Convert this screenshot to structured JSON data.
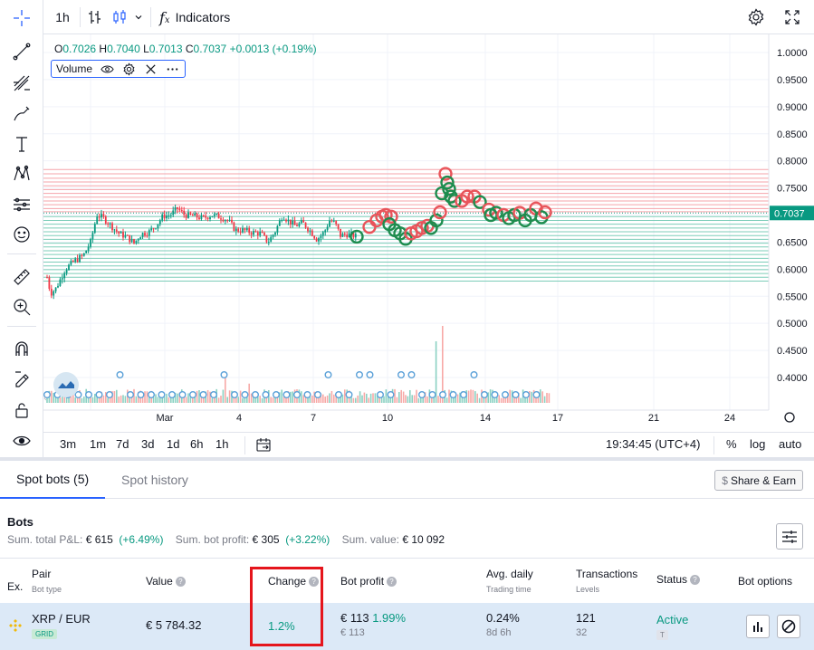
{
  "toolbar": {
    "interval": "1h",
    "indicators_label": "Indicators"
  },
  "legend": {
    "open_key": "O",
    "open": "0.7026",
    "high_key": "H",
    "high": "0.7040",
    "low_key": "L",
    "low": "0.7013",
    "close_key": "C",
    "close": "0.7037",
    "change": "+0.0013 (+0.19%)",
    "volume_label": "Volume"
  },
  "colors": {
    "up": "#089981",
    "down": "#f23645",
    "accent": "#2962ff",
    "price_tag": "#089981",
    "sell_grid_line": "#f5a3a9",
    "buy_grid_line": "#7ccdb8"
  },
  "price_axis": {
    "ticks": [
      "1.0000",
      "0.9500",
      "0.9000",
      "0.8500",
      "0.8000",
      "0.7500",
      "0.7000",
      "0.6500",
      "0.6000",
      "0.5500",
      "0.5000",
      "0.4500",
      "0.4000"
    ],
    "current_price": "0.7037"
  },
  "time_axis": {
    "ticks": [
      "Mar",
      "4",
      "7",
      "10",
      "14",
      "17",
      "21",
      "24"
    ]
  },
  "chart_data": {
    "type": "candlestick",
    "symbol_pair": "XRP / EUR",
    "interval": "1h",
    "price_range": [
      0.36,
      1.02
    ],
    "current_price": 0.7037,
    "grid_levels_sell": [
      0.784,
      0.776,
      0.768,
      0.761,
      0.754,
      0.747,
      0.74,
      0.733,
      0.726,
      0.719,
      0.712,
      0.706
    ],
    "grid_levels_buy": [
      0.697,
      0.69,
      0.683,
      0.676,
      0.669,
      0.662,
      0.655,
      0.648,
      0.641,
      0.634,
      0.627,
      0.62,
      0.613,
      0.606,
      0.599,
      0.592,
      0.585,
      0.578
    ],
    "price_path": [
      [
        0,
        0.585
      ],
      [
        4,
        0.555
      ],
      [
        10,
        0.565
      ],
      [
        20,
        0.6
      ],
      [
        30,
        0.615
      ],
      [
        40,
        0.625
      ],
      [
        48,
        0.65
      ],
      [
        55,
        0.7
      ],
      [
        62,
        0.695
      ],
      [
        72,
        0.678
      ],
      [
        80,
        0.665
      ],
      [
        88,
        0.66
      ],
      [
        96,
        0.648
      ],
      [
        104,
        0.665
      ],
      [
        112,
        0.668
      ],
      [
        120,
        0.68
      ],
      [
        128,
        0.698
      ],
      [
        136,
        0.7
      ],
      [
        144,
        0.712
      ],
      [
        152,
        0.7
      ],
      [
        162,
        0.698
      ],
      [
        172,
        0.694
      ],
      [
        182,
        0.7
      ],
      [
        192,
        0.696
      ],
      [
        200,
        0.69
      ],
      [
        208,
        0.672
      ],
      [
        216,
        0.672
      ],
      [
        226,
        0.668
      ],
      [
        236,
        0.666
      ],
      [
        244,
        0.65
      ],
      [
        252,
        0.67
      ],
      [
        260,
        0.7
      ],
      [
        266,
        0.69
      ],
      [
        274,
        0.68
      ],
      [
        282,
        0.686
      ],
      [
        290,
        0.672
      ],
      [
        298,
        0.655
      ],
      [
        306,
        0.668
      ],
      [
        312,
        0.69
      ],
      [
        318,
        0.685
      ],
      [
        324,
        0.662
      ],
      [
        332,
        0.665
      ],
      [
        342,
        0.66
      ]
    ],
    "trade_markers": [
      {
        "t": 342,
        "p": 0.66,
        "side": "buy"
      },
      {
        "t": 356,
        "p": 0.678,
        "side": "sell"
      },
      {
        "t": 364,
        "p": 0.69,
        "side": "sell"
      },
      {
        "t": 370,
        "p": 0.697,
        "side": "sell"
      },
      {
        "t": 374,
        "p": 0.7,
        "side": "sell"
      },
      {
        "t": 380,
        "p": 0.697,
        "side": "sell"
      },
      {
        "t": 378,
        "p": 0.683,
        "side": "buy"
      },
      {
        "t": 384,
        "p": 0.672,
        "side": "buy"
      },
      {
        "t": 390,
        "p": 0.666,
        "side": "buy"
      },
      {
        "t": 396,
        "p": 0.656,
        "side": "buy"
      },
      {
        "t": 402,
        "p": 0.666,
        "side": "sell"
      },
      {
        "t": 408,
        "p": 0.67,
        "side": "sell"
      },
      {
        "t": 414,
        "p": 0.676,
        "side": "sell"
      },
      {
        "t": 420,
        "p": 0.68,
        "side": "sell"
      },
      {
        "t": 424,
        "p": 0.676,
        "side": "buy"
      },
      {
        "t": 430,
        "p": 0.69,
        "side": "buy"
      },
      {
        "t": 434,
        "p": 0.705,
        "side": "sell"
      },
      {
        "t": 436,
        "p": 0.74,
        "side": "buy"
      },
      {
        "t": 440,
        "p": 0.776,
        "side": "sell"
      },
      {
        "t": 442,
        "p": 0.76,
        "side": "buy"
      },
      {
        "t": 444,
        "p": 0.748,
        "side": "buy"
      },
      {
        "t": 446,
        "p": 0.734,
        "side": "buy"
      },
      {
        "t": 450,
        "p": 0.726,
        "side": "buy"
      },
      {
        "t": 458,
        "p": 0.726,
        "side": "sell"
      },
      {
        "t": 464,
        "p": 0.734,
        "side": "sell"
      },
      {
        "t": 472,
        "p": 0.734,
        "side": "sell"
      },
      {
        "t": 478,
        "p": 0.724,
        "side": "buy"
      },
      {
        "t": 488,
        "p": 0.71,
        "side": "sell"
      },
      {
        "t": 490,
        "p": 0.7,
        "side": "buy"
      },
      {
        "t": 496,
        "p": 0.704,
        "side": "buy"
      },
      {
        "t": 504,
        "p": 0.7,
        "side": "sell"
      },
      {
        "t": 510,
        "p": 0.694,
        "side": "buy"
      },
      {
        "t": 516,
        "p": 0.7,
        "side": "buy"
      },
      {
        "t": 522,
        "p": 0.704,
        "side": "sell"
      },
      {
        "t": 528,
        "p": 0.69,
        "side": "buy"
      },
      {
        "t": 534,
        "p": 0.7,
        "side": "buy"
      },
      {
        "t": 540,
        "p": 0.712,
        "side": "sell"
      },
      {
        "t": 546,
        "p": 0.696,
        "side": "buy"
      },
      {
        "t": 550,
        "p": 0.705,
        "side": "sell"
      }
    ],
    "volume_spikes": [
      [
        196,
        0.35
      ],
      [
        224,
        0.25
      ],
      [
        430,
        0.8
      ],
      [
        436,
        1.0
      ]
    ]
  },
  "bottom_bar": {
    "ranges": [
      "3m",
      "1m",
      "7d",
      "3d",
      "1d",
      "6h",
      "1h"
    ],
    "clock": "19:34:45 (UTC+4)",
    "percent": "%",
    "log": "log",
    "auto": "auto"
  },
  "panel": {
    "tabs": [
      "Spot bots (5)",
      "Spot history"
    ],
    "share_label": "Share & Earn",
    "share_icon": "$",
    "title": "Bots",
    "summary": {
      "pnl_label": "Sum. total P&L:",
      "pnl_value": "€ 615",
      "pnl_pct": "(+6.49%)",
      "profit_label": "Sum. bot profit:",
      "profit_value": "€ 305",
      "profit_pct": "(+3.22%)",
      "value_label": "Sum. value:",
      "value_value": "€ 10 092"
    },
    "columns": {
      "ex": "Ex.",
      "pair": "Pair",
      "pair_sub": "Bot type",
      "value": "Value",
      "change": "Change",
      "bot_profit": "Bot profit",
      "avg_daily": "Avg. daily",
      "avg_daily_sub": "Trading time",
      "transactions": "Transactions",
      "transactions_sub": "Levels",
      "status": "Status",
      "options": "Bot options"
    },
    "row": {
      "exchange_icon": "binance-icon",
      "pair": "XRP / EUR",
      "bot_type": "GRID",
      "value": "€ 5 784.32",
      "change": "1.2%",
      "profit": "€ 113",
      "profit_pct": "1.99%",
      "profit_sub": "€ 113",
      "avg_daily": "0.24%",
      "trading_time": "8d 6h",
      "transactions": "121",
      "levels": "32",
      "status": "Active",
      "status_badge": "T"
    }
  }
}
